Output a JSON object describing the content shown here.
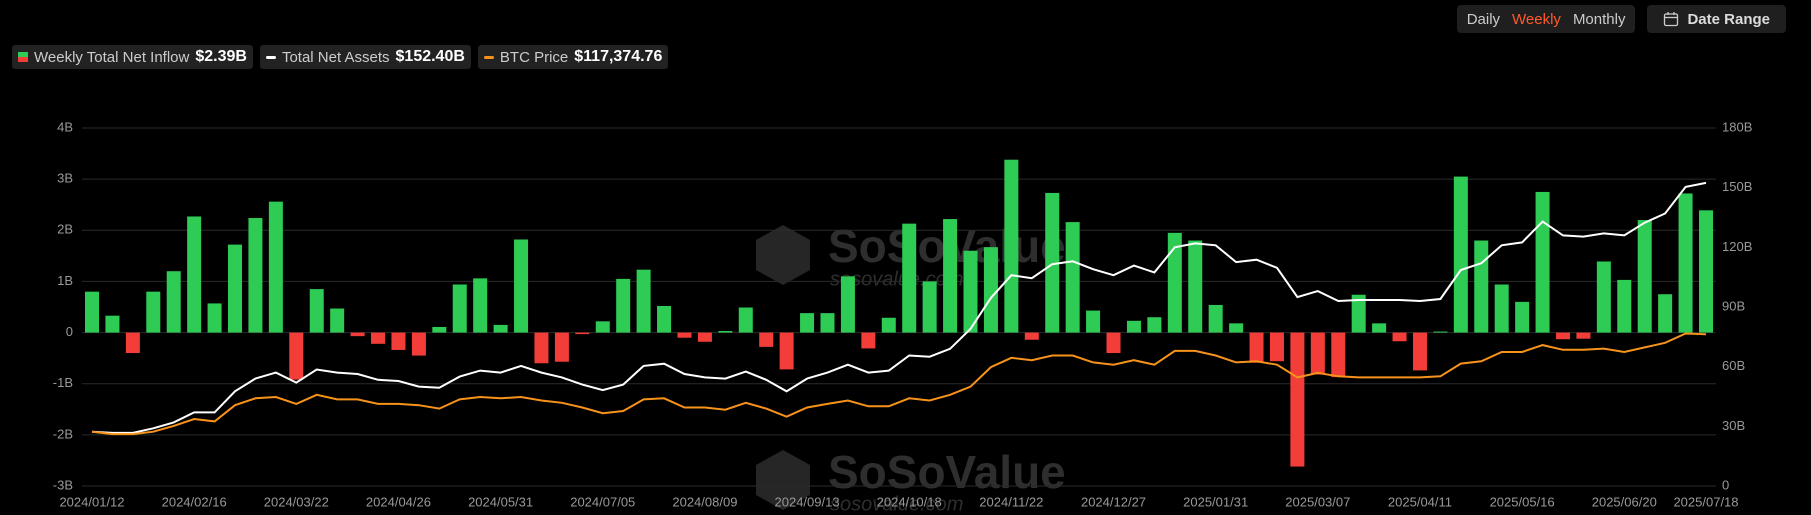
{
  "chart_data": {
    "type": "bar",
    "controls": {
      "periods": [
        "Daily",
        "Weekly",
        "Monthly"
      ],
      "active": 1,
      "date_range": "Date Range"
    },
    "watermark": "SoSoValue",
    "watermark_url": "sosovalue.com",
    "categories": [
      "2024/01/12",
      null,
      null,
      null,
      null,
      "2024/02/16",
      null,
      null,
      null,
      null,
      "2024/03/22",
      null,
      null,
      null,
      null,
      "2024/04/26",
      null,
      null,
      null,
      null,
      "2024/05/31",
      null,
      null,
      null,
      null,
      "2024/07/05",
      null,
      null,
      null,
      null,
      "2024/08/09",
      null,
      null,
      null,
      null,
      "2024/09/13",
      null,
      null,
      null,
      null,
      "2024/10/18",
      null,
      null,
      null,
      null,
      "2024/11/22",
      null,
      null,
      null,
      null,
      "2024/12/27",
      null,
      null,
      null,
      null,
      "2025/01/31",
      null,
      null,
      null,
      null,
      "2025/03/07",
      null,
      null,
      null,
      null,
      "2025/04/11",
      null,
      null,
      null,
      null,
      "2025/05/16",
      null,
      null,
      null,
      null,
      "2025/06/20",
      null,
      null,
      null,
      "2025/07/18"
    ],
    "series": [
      {
        "name": "Weekly Total Net Inflow",
        "type": "bar",
        "axis": "y",
        "color": "#2fcc55",
        "negative_color": "#f33d38",
        "legend_value": "$2.39B",
        "values": [
          0.8,
          0.33,
          -0.4,
          0.8,
          1.2,
          2.27,
          0.57,
          1.72,
          2.24,
          2.56,
          -0.92,
          0.85,
          0.47,
          -0.07,
          -0.22,
          -0.34,
          -0.45,
          0.11,
          0.94,
          1.06,
          0.15,
          1.82,
          -0.6,
          -0.57,
          -0.03,
          0.22,
          1.05,
          1.23,
          0.52,
          -0.1,
          -0.18,
          0.03,
          0.49,
          -0.28,
          -0.72,
          0.38,
          0.38,
          1.1,
          -0.31,
          0.29,
          2.13,
          1.0,
          2.22,
          1.6,
          1.67,
          3.38,
          -0.14,
          2.73,
          2.16,
          0.43,
          -0.4,
          0.23,
          0.3,
          1.95,
          1.8,
          0.54,
          0.18,
          -0.59,
          -0.56,
          -2.62,
          -0.82,
          -0.87,
          0.74,
          0.18,
          -0.17,
          -0.74,
          0.02,
          3.05,
          1.8,
          0.94,
          0.6,
          2.75,
          -0.13,
          -0.12,
          1.39,
          1.03,
          2.2,
          0.75,
          2.72,
          2.39
        ]
      },
      {
        "name": "Total Net Assets",
        "type": "line",
        "axis": "y2",
        "color": "#ffffff",
        "legend_value": "$152.40B",
        "values": [
          27.3,
          26.7,
          26.7,
          29,
          32,
          37,
          37,
          47.6,
          54,
          57,
          52,
          58.6,
          57,
          56.3,
          53.4,
          52.8,
          50,
          49.4,
          55,
          58,
          57,
          60.4,
          57,
          54.6,
          51,
          48.2,
          51,
          60.4,
          61.5,
          56.3,
          54.6,
          54,
          57.5,
          53.4,
          47.6,
          54,
          57,
          61,
          57,
          58,
          65.6,
          65,
          69,
          79,
          94.6,
          106,
          104.5,
          111.5,
          113,
          109,
          106,
          110.8,
          107.4,
          120,
          122,
          121,
          112.6,
          113.8,
          109.7,
          95,
          98,
          93,
          93.5,
          93.5,
          93.5,
          93,
          94,
          108.6,
          112,
          121,
          122.5,
          133,
          126,
          125.4,
          127,
          126,
          132.4,
          137,
          150.4,
          152.4
        ]
      },
      {
        "name": "BTC Price",
        "type": "line",
        "axis": "y3",
        "color": "#f7931a",
        "legend_value": "$117,374.76",
        "values": [
          46800,
          45100,
          45100,
          46800,
          51000,
          56000,
          54300,
          66000,
          71000,
          71900,
          66900,
          73500,
          70200,
          70200,
          66900,
          66900,
          66000,
          63500,
          70200,
          71900,
          71000,
          71900,
          69400,
          67700,
          64300,
          60200,
          61800,
          70200,
          71000,
          64300,
          64300,
          62700,
          67700,
          63500,
          57700,
          64300,
          66900,
          69400,
          65200,
          65200,
          71000,
          69400,
          73500,
          79400,
          93600,
          100300,
          98600,
          102000,
          102000,
          97000,
          95300,
          98600,
          95300,
          105300,
          105300,
          102000,
          97000,
          97800,
          95300,
          86100,
          89400,
          86900,
          86100,
          86100,
          86100,
          86100,
          86900,
          96100,
          97800,
          104500,
          104500,
          109500,
          106100,
          106100,
          107000,
          104500,
          107800,
          111200,
          117900,
          117374.76
        ]
      }
    ],
    "ylim": [
      -3,
      4
    ],
    "yticks": [
      {
        "value": 4,
        "label": "4B"
      },
      {
        "value": 3,
        "label": "3B"
      },
      {
        "value": 2,
        "label": "2B"
      },
      {
        "value": 1,
        "label": "1B"
      },
      0,
      {
        "value": -1,
        "label": "-1B"
      },
      {
        "value": -2,
        "label": "-2B"
      },
      {
        "value": -3,
        "label": "-3B"
      }
    ],
    "y2lim": [
      0,
      180
    ],
    "y2ticks": [
      0,
      {
        "value": 30,
        "label": "30B"
      },
      {
        "value": 60,
        "label": "60B"
      },
      {
        "value": 90,
        "label": "90B"
      },
      {
        "value": 120,
        "label": "120B"
      },
      {
        "value": 150,
        "label": "150B"
      },
      {
        "value": 180,
        "label": "180B"
      }
    ],
    "y3lim": [
      7500,
      266660
    ],
    "grid": true
  }
}
